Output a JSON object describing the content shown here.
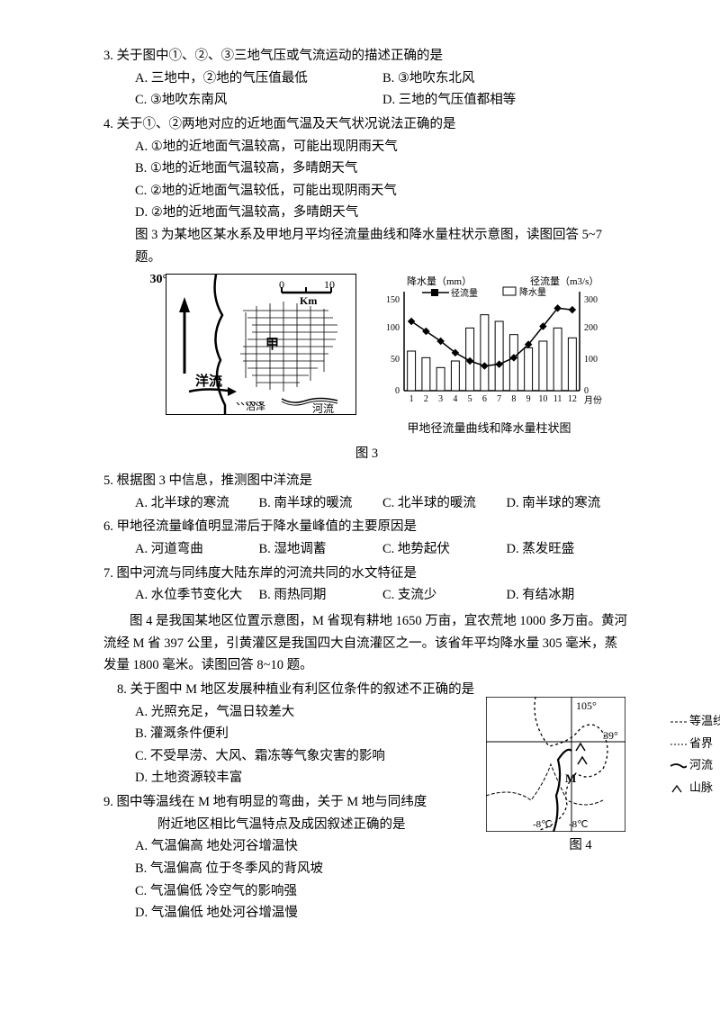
{
  "q3": {
    "stem": "3. 关于图中①、②、③三地气压或气流运动的描述正确的是",
    "a": "A. 三地中，②地的气压值最低",
    "b": "B. ③地吹东北风",
    "c": "C. ③地吹东南风",
    "d": "D. 三地的气压值都相等"
  },
  "q4": {
    "stem": "4. 关于①、②两地对应的近地面气温及天气状况说法正确的是",
    "a": "A. ①地的近地面气温较高，可能出现阴雨天气",
    "b": "B. ①地的近地面气温较高，多晴朗天气",
    "c": "C. ②地的近地面气温较低，可能出现阴雨天气",
    "d": "D. ②地的近地面气温较高，多晴朗天气",
    "intro": "图 3 为某地区某水系及甲地月平均径流量曲线和降水量柱状示意图，读图回答 5~7 题。"
  },
  "fig3": {
    "caption": "图 3",
    "chart_sub": "甲地径流量曲线和降水量柱状图",
    "map": {
      "label30": "30°",
      "scale_km": "Km",
      "scale_0": "0",
      "scale_10": "10",
      "label_jia": "甲",
      "label_yangliu": "洋流",
      "label_heliu": "河流",
      "label_zhaoze": "沼泽"
    },
    "chart": {
      "ylabel_left": "降水量（mm）",
      "ylabel_right": "径流量（m3/s）",
      "legend_runoff": "径流量",
      "legend_precip": "降水量",
      "left_max": 150,
      "left_ticks": [
        0,
        50,
        100,
        150
      ],
      "right_max": 300,
      "right_ticks": [
        0,
        100,
        200,
        300
      ],
      "months": [
        "1",
        "2",
        "3",
        "4",
        "5",
        "6",
        "7",
        "8",
        "9",
        "10",
        "11",
        "12"
      ],
      "xlabel": "月份",
      "precip_values": [
        60,
        50,
        35,
        45,
        95,
        115,
        105,
        85,
        65,
        75,
        95,
        80
      ],
      "runoff_values": [
        210,
        180,
        150,
        115,
        90,
        75,
        80,
        100,
        140,
        195,
        250,
        245
      ],
      "bar_color": "#ffffff",
      "bar_border": "#000000",
      "line_color": "#000000",
      "marker": "diamond",
      "background": "#ffffff"
    }
  },
  "q5": {
    "stem": "5. 根据图 3 中信息，推测图中洋流是",
    "a": "A. 北半球的寒流",
    "b": "B. 南半球的暖流",
    "c": "C. 北半球的暖流",
    "d": "D. 南半球的寒流"
  },
  "q6": {
    "stem": "6. 甲地径流量峰值明显滞后于降水量峰值的主要原因是",
    "a": "A. 河道弯曲",
    "b": "B. 湿地调蓄",
    "c": "C. 地势起伏",
    "d": "D. 蒸发旺盛"
  },
  "q7": {
    "stem": "7. 图中河流与同纬度大陆东岸的河流共同的水文特征是",
    "a": "A. 水位季节变化大",
    "b": "B. 雨热同期",
    "c": "C. 支流少",
    "d": "D. 有结冰期"
  },
  "intro8": "图 4 是我国某地区位置示意图，M 省现有耕地 1650 万亩，宜农荒地 1000 多万亩。黄河流经 M 省 397 公里，引黄灌区是我国四大自流灌区之一。该省年平均降水量 305 毫米，蒸发量 1800 毫米。读图回答 8~10 题。",
  "q8": {
    "stem": "8. 关于图中 M 地区发展种植业有利区位条件的叙述不正确的是",
    "a": "A. 光照充足，气温日较差大",
    "b": "B. 灌溉条件便利",
    "c": "C. 不受旱涝、大风、霜冻等气象灾害的影响",
    "d": "D. 土地资源较丰富"
  },
  "q9": {
    "stem": "9. 图中等温线在 M 地有明显的弯曲，关于 M 地与同纬度",
    "stem2": "附近地区相比气温特点及成因叙述正确的是",
    "a": "A. 气温偏高  地处河谷增温快",
    "b": "B. 气温偏高  位于冬季风的背风坡",
    "c": "C. 气温偏低  冷空气的影响强",
    "d": "D. 气温偏低  地处河谷增温慢"
  },
  "fig4": {
    "caption": "图 4",
    "lon": "105°",
    "lat": "39°",
    "temp1": "-8℃",
    "temp2": "-8℃",
    "label_m": "M",
    "legend_isotherm": "等温线",
    "legend_province": "省界",
    "legend_river": "河流",
    "legend_mountain": "山脉"
  }
}
